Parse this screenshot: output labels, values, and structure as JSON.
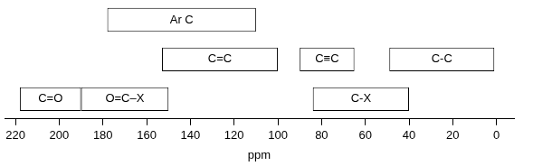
{
  "chart_data": {
    "type": "bar",
    "orientation": "horizontal",
    "categories": [
      null,
      null,
      null
    ],
    "series": [
      {
        "name": "Ar C",
        "values": [
          [
            178,
            110
          ],
          null,
          null
        ]
      },
      {
        "name": "C=C",
        "values": [
          null,
          [
            153,
            100
          ],
          null
        ]
      },
      {
        "name": "C≡C",
        "values": [
          null,
          [
            90,
            65
          ],
          null
        ]
      },
      {
        "name": "C-C",
        "values": [
          null,
          [
            49,
            1
          ],
          null
        ]
      },
      {
        "name": "C=O",
        "values": [
          null,
          null,
          [
            218,
            190
          ]
        ]
      },
      {
        "name": "O=C–X",
        "values": [
          null,
          null,
          [
            190,
            150
          ]
        ]
      },
      {
        "name": "C-X",
        "values": [
          null,
          null,
          [
            84,
            40
          ]
        ]
      }
    ],
    "color": "#ffffff",
    "xlabel": "ppm",
    "xlim": [
      225,
      -8
    ],
    "xticks": [
      220,
      200,
      180,
      160,
      140,
      120,
      100,
      80,
      60,
      40,
      20,
      0
    ],
    "grid": false,
    "tick_labels": "x"
  }
}
